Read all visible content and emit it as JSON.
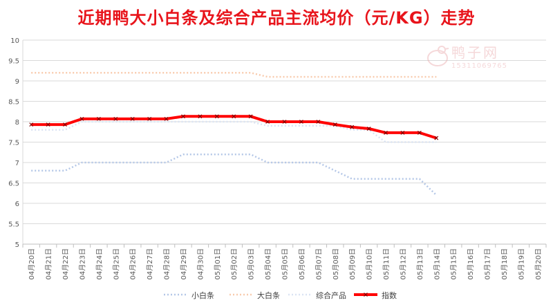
{
  "chart_data": {
    "type": "line",
    "title": "近期鸭大小白条及综合产品主流均价（元/KG）走势",
    "xlabel": "",
    "ylabel": "",
    "ylim": [
      5,
      10
    ],
    "yticks": [
      "5",
      "5.5",
      "6",
      "6.5",
      "7",
      "7.5",
      "8",
      "8.5",
      "9",
      "9.5",
      "10"
    ],
    "grid": true,
    "legend_position": "bottom",
    "categories": [
      "04月20日",
      "04月21日",
      "04月22日",
      "04月23日",
      "04月24日",
      "04月25日",
      "04月26日",
      "04月27日",
      "04月28日",
      "04月29日",
      "04月30日",
      "05月01日",
      "05月02日",
      "05月03日",
      "05月04日",
      "05月05日",
      "05月06日",
      "05月07日",
      "05月08日",
      "05月09日",
      "05月10日",
      "05月11日",
      "05月12日",
      "05月13日",
      "05月14日",
      "05月15日",
      "05月16日",
      "05月17日",
      "05月18日",
      "05月19日",
      "05月20日"
    ],
    "series": [
      {
        "name": "小白条",
        "color": "#b4c7e7",
        "style": "dotted",
        "values": [
          6.8,
          6.8,
          6.8,
          7.0,
          7.0,
          7.0,
          7.0,
          7.0,
          7.0,
          7.2,
          7.2,
          7.2,
          7.2,
          7.2,
          7.0,
          7.0,
          7.0,
          7.0,
          6.8,
          6.6,
          6.6,
          6.6,
          6.6,
          6.6,
          6.2,
          null,
          null,
          null,
          null,
          null,
          null
        ]
      },
      {
        "name": "大白条",
        "color": "#f8cbad",
        "style": "dotted",
        "values": [
          9.2,
          9.2,
          9.2,
          9.2,
          9.2,
          9.2,
          9.2,
          9.2,
          9.2,
          9.2,
          9.2,
          9.2,
          9.2,
          9.2,
          9.1,
          9.1,
          9.1,
          9.1,
          9.1,
          9.1,
          9.1,
          9.1,
          9.1,
          9.1,
          9.1,
          null,
          null,
          null,
          null,
          null,
          null
        ]
      },
      {
        "name": "综合产品",
        "color": "#dae3f3",
        "style": "dotted",
        "values": [
          7.8,
          7.8,
          7.8,
          8.0,
          8.0,
          8.0,
          8.0,
          8.0,
          8.0,
          8.0,
          8.0,
          8.0,
          8.0,
          8.0,
          7.9,
          7.9,
          7.9,
          7.9,
          7.9,
          7.8,
          7.8,
          7.5,
          7.5,
          7.5,
          7.5,
          null,
          null,
          null,
          null,
          null,
          null
        ]
      },
      {
        "name": "指数",
        "color": "#ff0000",
        "style": "solid",
        "values": [
          7.93,
          7.93,
          7.93,
          8.07,
          8.07,
          8.07,
          8.07,
          8.07,
          8.07,
          8.13,
          8.13,
          8.13,
          8.13,
          8.13,
          8.0,
          8.0,
          8.0,
          8.0,
          7.93,
          7.87,
          7.83,
          7.73,
          7.73,
          7.73,
          7.6,
          null,
          null,
          null,
          null,
          null,
          null
        ]
      }
    ]
  },
  "watermark": {
    "text": "鸭子网",
    "phone": "15311069765"
  }
}
